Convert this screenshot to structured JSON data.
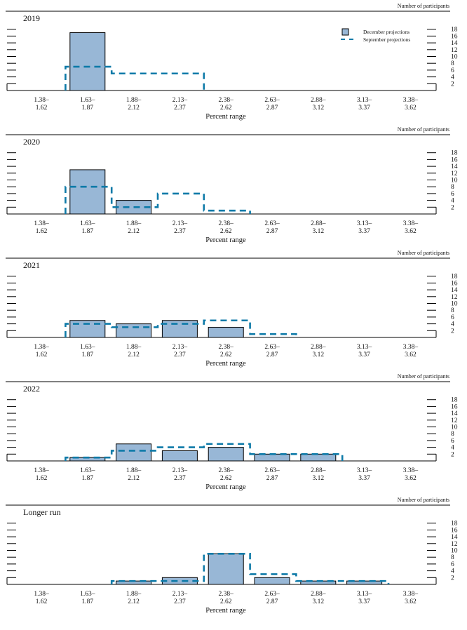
{
  "chart_data": [
    {
      "type": "bar",
      "title": "2019",
      "xlabel": "Percent range",
      "ylabel": "Number of participants",
      "categories": [
        "1.38–1.62",
        "1.63–1.87",
        "1.88–2.12",
        "2.13–2.37",
        "2.38–2.62",
        "2.63–2.87",
        "2.88–3.12",
        "3.13–3.37",
        "3.38–3.62"
      ],
      "series": [
        {
          "name": "December projections",
          "style": "bar",
          "values": [
            0,
            17,
            0,
            0,
            0,
            0,
            0,
            0,
            0
          ]
        },
        {
          "name": "September projections",
          "style": "dashed-step",
          "values": [
            0,
            7,
            5,
            5,
            0,
            0,
            0,
            0,
            0
          ]
        }
      ],
      "ylim": [
        0,
        18
      ],
      "yticks": [
        2,
        4,
        6,
        8,
        10,
        12,
        14,
        16,
        18
      ],
      "legend": "top-right"
    },
    {
      "type": "bar",
      "title": "2020",
      "xlabel": "Percent range",
      "ylabel": "Number of participants",
      "categories": [
        "1.38–1.62",
        "1.63–1.87",
        "1.88–2.12",
        "2.13–2.37",
        "2.38–2.62",
        "2.63–2.87",
        "2.88–3.12",
        "3.13–3.37",
        "3.38–3.62"
      ],
      "series": [
        {
          "name": "December projections",
          "style": "bar",
          "values": [
            0,
            13,
            4,
            0,
            0,
            0,
            0,
            0,
            0
          ]
        },
        {
          "name": "September projections",
          "style": "dashed-step",
          "values": [
            0,
            8,
            2,
            6,
            1,
            0,
            0,
            0,
            0
          ]
        }
      ],
      "ylim": [
        0,
        18
      ],
      "yticks": [
        2,
        4,
        6,
        8,
        10,
        12,
        14,
        16,
        18
      ]
    },
    {
      "type": "bar",
      "title": "2021",
      "xlabel": "Percent range",
      "ylabel": "Number of participants",
      "categories": [
        "1.38–1.62",
        "1.63–1.87",
        "1.88–2.12",
        "2.13–2.37",
        "2.38–2.62",
        "2.63–2.87",
        "2.88–3.12",
        "3.13–3.37",
        "3.38–3.62"
      ],
      "series": [
        {
          "name": "December projections",
          "style": "bar",
          "values": [
            0,
            5,
            4,
            5,
            3,
            0,
            0,
            0,
            0
          ]
        },
        {
          "name": "September projections",
          "style": "dashed-step",
          "values": [
            0,
            4,
            3,
            4,
            5,
            1,
            0,
            0,
            0
          ]
        }
      ],
      "ylim": [
        0,
        18
      ],
      "yticks": [
        2,
        4,
        6,
        8,
        10,
        12,
        14,
        16,
        18
      ]
    },
    {
      "type": "bar",
      "title": "2022",
      "xlabel": "Percent range",
      "ylabel": "Number of participants",
      "categories": [
        "1.38–1.62",
        "1.63–1.87",
        "1.88–2.12",
        "2.13–2.37",
        "2.38–2.62",
        "2.63–2.87",
        "2.88–3.12",
        "3.13–3.37",
        "3.38–3.62"
      ],
      "series": [
        {
          "name": "December projections",
          "style": "bar",
          "values": [
            0,
            1,
            5,
            3,
            4,
            2,
            2,
            0,
            0
          ]
        },
        {
          "name": "September projections",
          "style": "dashed-step",
          "values": [
            0,
            1,
            3,
            4,
            5,
            2,
            2,
            0,
            0
          ]
        }
      ],
      "ylim": [
        0,
        18
      ],
      "yticks": [
        2,
        4,
        6,
        8,
        10,
        12,
        14,
        16,
        18
      ]
    },
    {
      "type": "bar",
      "title": "Longer run",
      "xlabel": "Percent range",
      "ylabel": "Number of participants",
      "categories": [
        "1.38–1.62",
        "1.63–1.87",
        "1.88–2.12",
        "2.13–2.37",
        "2.38–2.62",
        "2.63–2.87",
        "2.88–3.12",
        "3.13–3.37",
        "3.38–3.62"
      ],
      "series": [
        {
          "name": "December projections",
          "style": "bar",
          "values": [
            0,
            0,
            1,
            2,
            9,
            2,
            1,
            1,
            0
          ]
        },
        {
          "name": "September projections",
          "style": "dashed-step",
          "values": [
            0,
            0,
            1,
            1,
            9,
            3,
            1,
            1,
            0
          ]
        }
      ],
      "ylim": [
        0,
        18
      ],
      "yticks": [
        2,
        4,
        6,
        8,
        10,
        12,
        14,
        16,
        18
      ]
    }
  ],
  "colors": {
    "bar_fill": "#98b7d6",
    "bar_stroke": "#000000",
    "dashed": "#0e7aa8",
    "axis": "#000000"
  },
  "legend": {
    "december": "December projections",
    "september": "September projections"
  }
}
